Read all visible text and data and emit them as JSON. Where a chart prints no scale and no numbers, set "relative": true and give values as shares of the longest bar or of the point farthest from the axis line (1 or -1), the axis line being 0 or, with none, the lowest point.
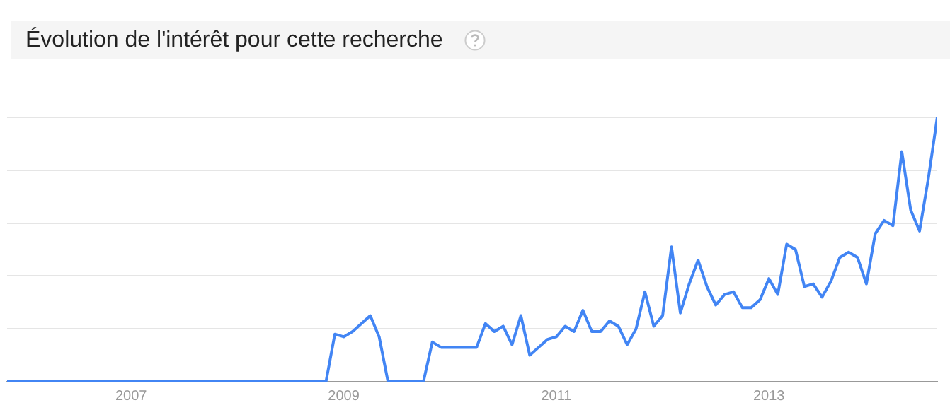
{
  "chart_data": {
    "type": "line",
    "title": "Évolution de l'intérêt pour cette recherche",
    "relative": true,
    "grid": "y",
    "legend": false,
    "marker": "none",
    "line_style": "solid",
    "xlim": [
      "2005-11",
      "2014-08"
    ],
    "xticks": [
      "2007",
      "2009",
      "2011",
      "2013"
    ],
    "series": [
      {
        "color": "#4285f4",
        "x": [
          "2005-11",
          "2008-11",
          "2008-12",
          "2009-01",
          "2009-02",
          "2009-03",
          "2009-04",
          "2009-05",
          "2009-06",
          "2009-10",
          "2009-11",
          "2009-12",
          "2010-04",
          "2010-05",
          "2010-06",
          "2010-07",
          "2010-08",
          "2010-09",
          "2010-10",
          "2010-11",
          "2010-12",
          "2011-01",
          "2011-02",
          "2011-03",
          "2011-04",
          "2011-05",
          "2011-06",
          "2011-07",
          "2011-08",
          "2011-09",
          "2011-10",
          "2011-11",
          "2011-12",
          "2012-01",
          "2012-02",
          "2012-03",
          "2012-04",
          "2012-05",
          "2012-06",
          "2012-07",
          "2012-08",
          "2012-09",
          "2012-10",
          "2012-11",
          "2012-12",
          "2013-01",
          "2013-02",
          "2013-03",
          "2013-04",
          "2013-05",
          "2013-06",
          "2013-07",
          "2013-08",
          "2013-09",
          "2013-10",
          "2013-11",
          "2013-12",
          "2014-01",
          "2014-02",
          "2014-03",
          "2014-04",
          "2014-05",
          "2014-06",
          "2014-07",
          "2014-08"
        ],
        "values": [
          0,
          0,
          0.18,
          0.17,
          0.19,
          0.22,
          0.25,
          0.17,
          0,
          0,
          0.15,
          0.13,
          0.13,
          0.22,
          0.19,
          0.21,
          0.14,
          0.25,
          0.1,
          0.13,
          0.16,
          0.17,
          0.21,
          0.19,
          0.27,
          0.19,
          0.19,
          0.23,
          0.21,
          0.14,
          0.2,
          0.34,
          0.21,
          0.25,
          0.51,
          0.26,
          0.37,
          0.46,
          0.36,
          0.29,
          0.33,
          0.34,
          0.28,
          0.28,
          0.31,
          0.39,
          0.33,
          0.52,
          0.5,
          0.36,
          0.37,
          0.32,
          0.38,
          0.47,
          0.49,
          0.47,
          0.37,
          0.56,
          0.61,
          0.59,
          0.87,
          0.65,
          0.57,
          0.77,
          1
        ]
      }
    ]
  }
}
